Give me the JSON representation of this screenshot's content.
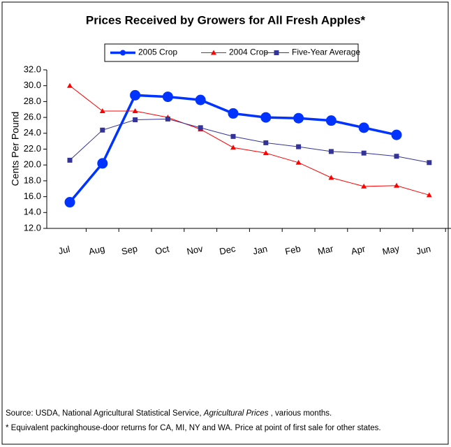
{
  "chart_data": {
    "type": "line",
    "title": "Prices Received by Growers for All Fresh Apples*",
    "y_label": "Cents Per Pound",
    "categories": [
      "Jul",
      "Aug",
      "Sep",
      "Oct",
      "Nov",
      "Dec",
      "Jan",
      "Feb",
      "Mar",
      "Apr",
      "May",
      "Jun"
    ],
    "series": [
      {
        "name": "2005 Crop",
        "color": "#0033ff",
        "marker": "circle",
        "values": [
          15.3,
          20.2,
          28.8,
          28.6,
          28.2,
          26.5,
          26.0,
          25.9,
          25.6,
          24.7,
          23.8,
          null
        ]
      },
      {
        "name": "2004 Crop",
        "color": "#ff0000",
        "marker": "triangle",
        "values": [
          30.0,
          26.8,
          26.8,
          26.0,
          24.5,
          22.2,
          21.5,
          20.3,
          18.4,
          17.3,
          17.4,
          16.2
        ]
      },
      {
        "name": "Five-Year Average",
        "color": "#333399",
        "marker": "square",
        "values": [
          20.6,
          24.4,
          25.7,
          25.8,
          24.7,
          23.6,
          22.8,
          22.3,
          21.7,
          21.5,
          21.1,
          20.3
        ]
      }
    ],
    "ylim": [
      12,
      32
    ],
    "yticks": [
      {
        "value": 12,
        "label": "12.0"
      },
      {
        "value": 14,
        "label": "14.0"
      },
      {
        "value": 16,
        "label": "16.0"
      },
      {
        "value": 18,
        "label": "18.0"
      },
      {
        "value": 20,
        "label": "20.0"
      },
      {
        "value": 22,
        "label": "22.0"
      },
      {
        "value": 24,
        "label": "24.0"
      },
      {
        "value": 26,
        "label": "26.0"
      },
      {
        "value": 28,
        "label": "28.0"
      },
      {
        "value": 30,
        "label": "30.0"
      },
      {
        "value": 32,
        "label": "32.0"
      }
    ],
    "grid": false,
    "legend": "top",
    "source": {
      "before": "Source:  USDA, National Agricultural Statistical Service, ",
      "italic": "Agricultural Prices",
      "after": " , various months."
    },
    "footnote": "* Equivalent packinghouse-door returns for CA, MI, NY and WA.  Price at point of first sale for other states."
  }
}
